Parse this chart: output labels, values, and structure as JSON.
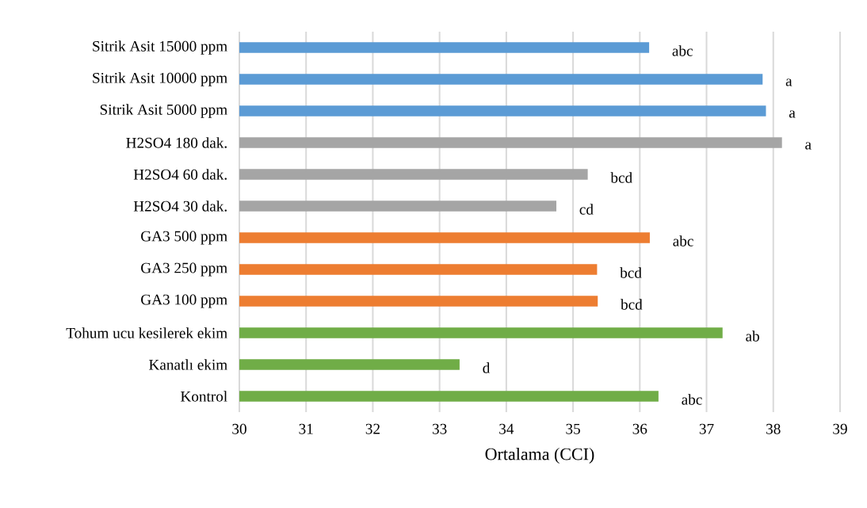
{
  "chart_data": {
    "type": "bar",
    "orientation": "horizontal",
    "xlabel": "Ortalama (CCI)",
    "categories": [
      "Sitrik Asit 15000 ppm",
      "Sitrik Asit 10000 ppm",
      "Sitrik Asit 5000 ppm",
      "H2SO4 180 dak.",
      "H2SO4 60 dak.",
      "H2SO4 30 dak.",
      "GA3 500 ppm",
      "GA3 250 ppm",
      "GA3 100 ppm",
      "Tohum ucu kesilerek ekim",
      "Kanatlı ekim",
      "Kontrol"
    ],
    "values": [
      36.14,
      37.84,
      37.89,
      38.13,
      35.22,
      34.75,
      36.15,
      35.36,
      35.37,
      37.24,
      33.3,
      36.28
    ],
    "colors": [
      "#5b9bd5",
      "#5b9bd5",
      "#5b9bd5",
      "#a5a5a5",
      "#a5a5a5",
      "#a5a5a5",
      "#ed7d31",
      "#ed7d31",
      "#ed7d31",
      "#70ad47",
      "#70ad47",
      "#70ad47"
    ],
    "xlim": [
      30,
      39
    ],
    "xticks": [
      30,
      31,
      32,
      33,
      34,
      35,
      36,
      37,
      38,
      39
    ],
    "grid": "x",
    "annotations": [
      {
        "text": "abc",
        "x": 36.14,
        "y": "Sitrik Asit 15000 ppm"
      },
      {
        "text": "a",
        "x": 37.84,
        "y": "Sitrik Asit 10000 ppm"
      },
      {
        "text": "a",
        "x": 37.89,
        "y": "Sitrik Asit 5000 ppm"
      },
      {
        "text": "a",
        "x": 38.13,
        "y": "H2SO4 180 dak."
      },
      {
        "text": "bcd",
        "x": 35.22,
        "y": "H2SO4 60 dak."
      },
      {
        "text": "cd",
        "x": 34.75,
        "y": "H2SO4 30 dak."
      },
      {
        "text": "abc",
        "x": 36.15,
        "y": "GA3 500 ppm"
      },
      {
        "text": "bcd",
        "x": 35.36,
        "y": "GA3 250 ppm"
      },
      {
        "text": "bcd",
        "x": 35.37,
        "y": "GA3 100 ppm"
      },
      {
        "text": "ab",
        "x": 37.24,
        "y": "Tohum ucu kesilerek ekim"
      },
      {
        "text": "d",
        "x": 33.3,
        "y": "Kanatlı ekim"
      },
      {
        "text": "abc",
        "x": 36.28,
        "y": "Kontrol"
      }
    ]
  }
}
